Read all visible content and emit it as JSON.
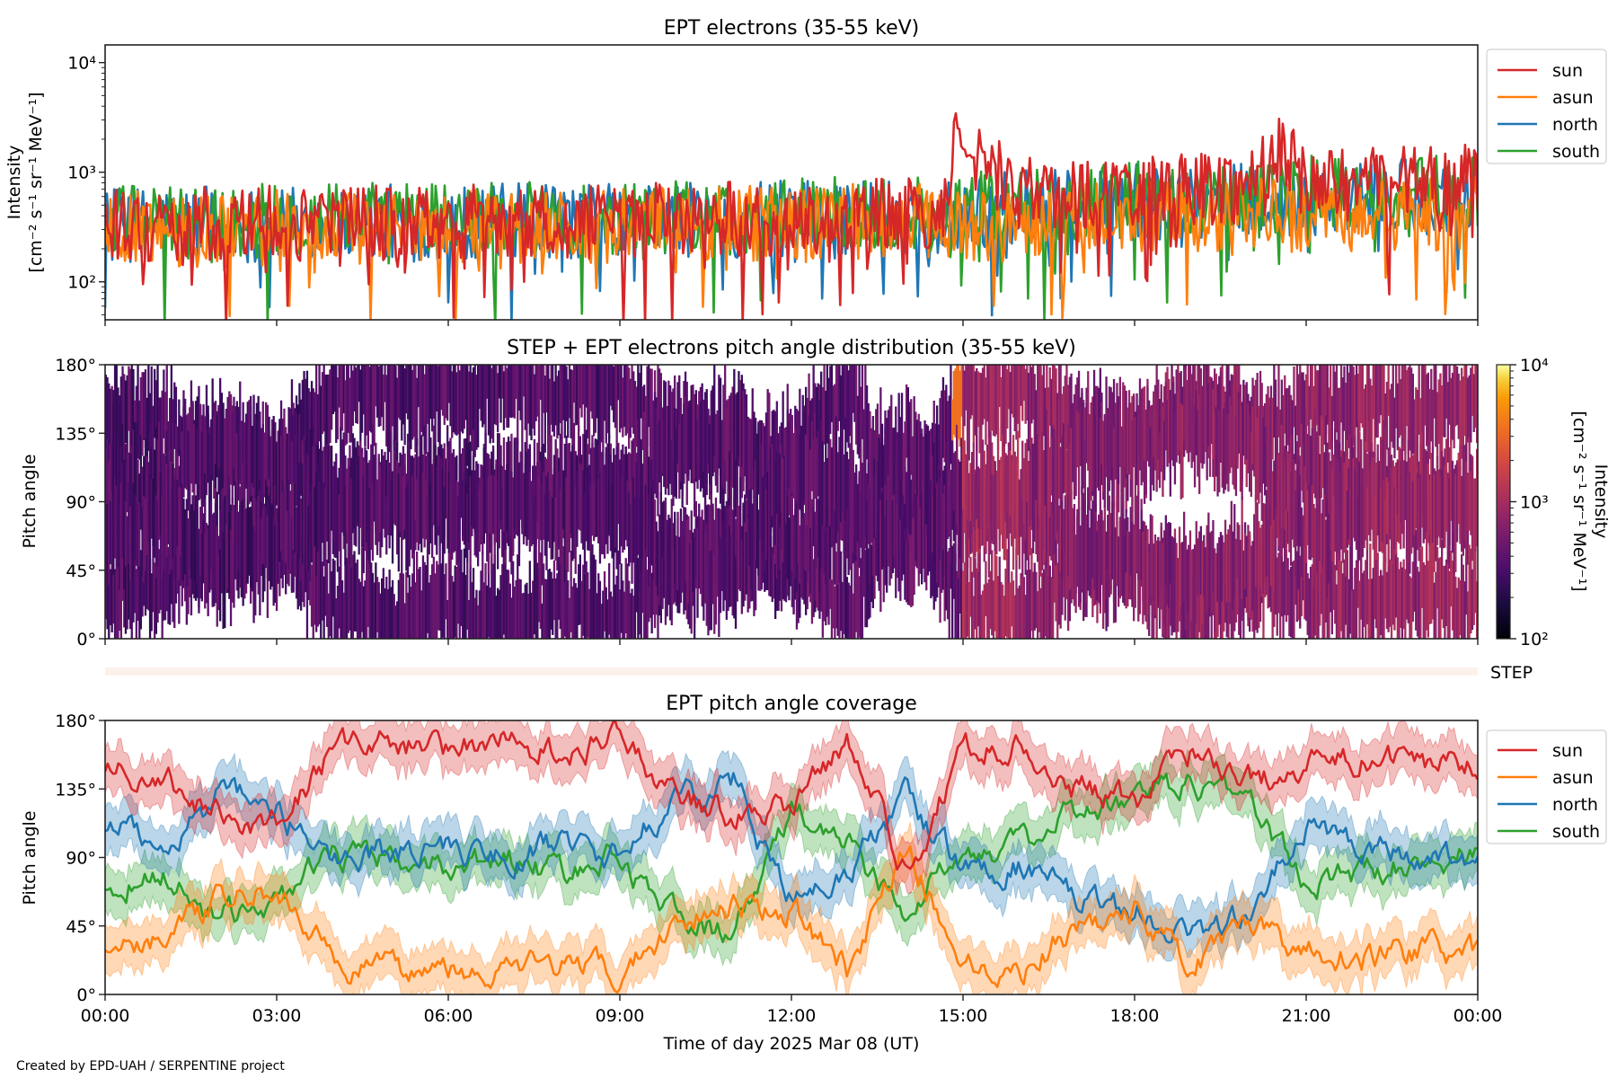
{
  "footer": "Created by EPD-UAH / SERPENTINE project",
  "xaxis": {
    "label": "Time of day 2025 Mar 08 (UT)",
    "ticks": [
      "00:00",
      "03:00",
      "06:00",
      "09:00",
      "12:00",
      "15:00",
      "18:00",
      "21:00",
      "00:00"
    ],
    "range_hours": [
      0,
      24
    ]
  },
  "colors": {
    "sun": "#d62728",
    "asun": "#ff7f0e",
    "north": "#1f77b4",
    "south": "#2ca02c",
    "step_bar": "#fdf1ec"
  },
  "chart_data": [
    {
      "type": "line",
      "title": "EPT electrons (35-55 keV)",
      "ylabel_line1": "Intensity",
      "ylabel_line2": "[cm⁻² s⁻¹ sr⁻¹ MeV⁻¹]",
      "yscale": "log",
      "ylim": [
        45,
        14500
      ],
      "yticks": [
        {
          "value": 100,
          "label": "10²"
        },
        {
          "value": 1000,
          "label": "10³"
        },
        {
          "value": 10000,
          "label": "10⁴"
        }
      ],
      "legend": [
        "sun",
        "asun",
        "north",
        "south"
      ],
      "legend_position": "outside-right-top",
      "x_hours": [
        0,
        1,
        2,
        3,
        4,
        5,
        6,
        7,
        8,
        9,
        10,
        11,
        12,
        13,
        14,
        14.8,
        14.85,
        15,
        16,
        17,
        18,
        19,
        20,
        20.5,
        21,
        22,
        23,
        24
      ],
      "series": [
        {
          "name": "sun",
          "values": [
            330,
            340,
            330,
            340,
            345,
            350,
            350,
            360,
            355,
            360,
            365,
            370,
            380,
            390,
            400,
            420,
            3500,
            1500,
            620,
            650,
            700,
            720,
            750,
            1550,
            800,
            750,
            780,
            820
          ]
        },
        {
          "name": "asun",
          "values": [
            300,
            310,
            300,
            310,
            315,
            320,
            320,
            330,
            325,
            330,
            335,
            340,
            345,
            350,
            360,
            370,
            380,
            330,
            340,
            360,
            370,
            380,
            390,
            400,
            400,
            390,
            400,
            410
          ]
        },
        {
          "name": "north",
          "values": [
            330,
            340,
            330,
            340,
            345,
            350,
            350,
            360,
            355,
            360,
            365,
            370,
            380,
            390,
            400,
            410,
            420,
            430,
            470,
            500,
            530,
            550,
            560,
            580,
            590,
            590,
            600,
            610
          ]
        },
        {
          "name": "south",
          "values": [
            350,
            360,
            350,
            360,
            365,
            370,
            370,
            380,
            375,
            380,
            385,
            390,
            400,
            410,
            420,
            430,
            440,
            450,
            500,
            540,
            570,
            600,
            640,
            620,
            640,
            630,
            640,
            650
          ]
        }
      ]
    },
    {
      "type": "heatmap",
      "title": "STEP + EPT electrons pitch angle distribution (35-55 keV)",
      "ylabel": "Pitch angle",
      "ylim": [
        0,
        180
      ],
      "yticks": [
        "0°",
        "45°",
        "90°",
        "135°",
        "180°"
      ],
      "colorbar": {
        "label_line1": "Intensity",
        "label_line2": "[cm⁻² s⁻¹ sr⁻¹ MeV⁻¹]",
        "scale": "log",
        "range": [
          100,
          10000
        ],
        "ticks": [
          {
            "value": 100,
            "label": "10²"
          },
          {
            "value": 1000,
            "label": "10³"
          },
          {
            "value": 10000,
            "label": "10⁴"
          }
        ],
        "colormap": "inferno"
      },
      "intensity_by_hour": [
        330,
        340,
        330,
        340,
        345,
        350,
        350,
        360,
        355,
        360,
        365,
        370,
        380,
        390,
        400,
        900,
        700,
        620,
        650,
        700,
        720,
        750,
        800,
        820
      ]
    },
    {
      "type": "bar",
      "label": "STEP",
      "note": "STEP coverage strip"
    },
    {
      "type": "line",
      "title": "EPT pitch angle coverage",
      "ylabel": "Pitch angle",
      "ylim": [
        0,
        180
      ],
      "yticks": [
        "0°",
        "45°",
        "90°",
        "135°",
        "180°"
      ],
      "legend": [
        "sun",
        "asun",
        "north",
        "south"
      ],
      "legend_position": "outside-right-top",
      "band_halfwidth_deg": 15,
      "x_hours": [
        0,
        1,
        2,
        3,
        4,
        5,
        6,
        7,
        8,
        9,
        10,
        11,
        12,
        13,
        14,
        15,
        16,
        17,
        18,
        19,
        20,
        21,
        22,
        23,
        24
      ],
      "series": [
        {
          "name": "sun",
          "values": [
            150,
            140,
            120,
            110,
            160,
            165,
            160,
            165,
            160,
            168,
            130,
            120,
            125,
            165,
            80,
            160,
            165,
            135,
            125,
            160,
            140,
            150,
            155,
            150,
            155
          ]
        },
        {
          "name": "asun",
          "values": [
            30,
            40,
            60,
            70,
            20,
            15,
            20,
            15,
            20,
            12,
            50,
            60,
            55,
            15,
            100,
            20,
            15,
            45,
            55,
            20,
            40,
            30,
            25,
            30,
            25
          ]
        },
        {
          "name": "north",
          "values": [
            110,
            100,
            130,
            120,
            90,
            95,
            95,
            90,
            100,
            90,
            130,
            140,
            60,
            80,
            130,
            80,
            85,
            60,
            55,
            40,
            50,
            110,
            100,
            90,
            90
          ]
        },
        {
          "name": "south",
          "values": [
            70,
            80,
            50,
            60,
            90,
            85,
            85,
            90,
            80,
            90,
            50,
            40,
            120,
            100,
            50,
            100,
            95,
            120,
            125,
            140,
            130,
            70,
            80,
            90,
            90
          ]
        }
      ]
    }
  ]
}
